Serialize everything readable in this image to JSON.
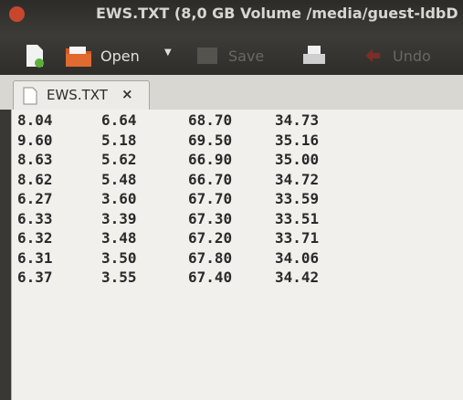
{
  "window": {
    "title": "EWS.TXT (8,0 GB Volume /media/guest-ldbD"
  },
  "toolbar": {
    "open": "Open",
    "save": "Save",
    "undo": "Undo"
  },
  "tab": {
    "label": "EWS.TXT",
    "close": "×"
  },
  "table": {
    "rows": [
      [
        "8.04",
        "6.64",
        "68.70",
        "34.73"
      ],
      [
        "9.60",
        "5.18",
        "69.50",
        "35.16"
      ],
      [
        "8.63",
        "5.62",
        "66.90",
        "35.00"
      ],
      [
        "8.62",
        "5.48",
        "66.70",
        "34.72"
      ],
      [
        "6.27",
        "3.60",
        "67.70",
        "33.59"
      ],
      [
        "6.33",
        "3.39",
        "67.30",
        "33.51"
      ],
      [
        "6.32",
        "3.48",
        "67.20",
        "33.71"
      ],
      [
        "6.31",
        "3.50",
        "67.80",
        "34.06"
      ],
      [
        "6.37",
        "3.55",
        "67.40",
        "34.42"
      ]
    ]
  }
}
